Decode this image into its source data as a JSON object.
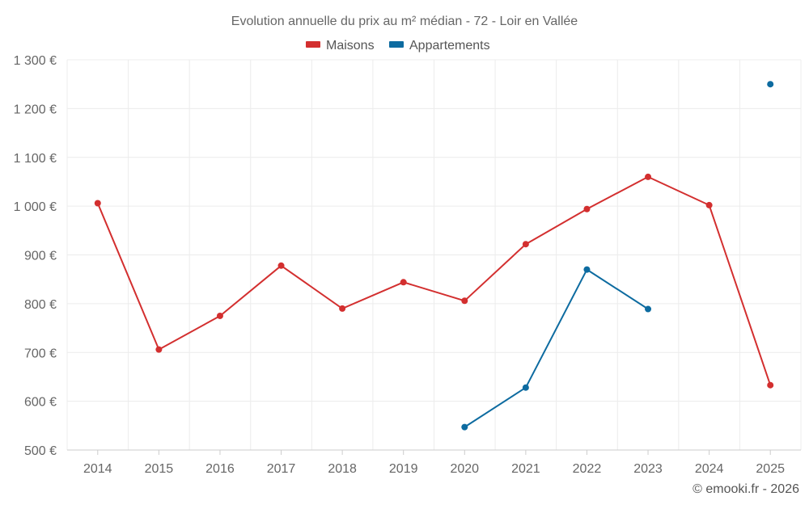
{
  "chart_data": {
    "type": "line",
    "title": "Evolution annuelle du prix au m² médian - 72 - Loir en Vallée",
    "categories": [
      "2014",
      "2015",
      "2016",
      "2017",
      "2018",
      "2019",
      "2020",
      "2021",
      "2022",
      "2023",
      "2024",
      "2025"
    ],
    "ylim": [
      500,
      1300
    ],
    "yticks": [
      500,
      600,
      700,
      800,
      900,
      1000,
      1100,
      1200,
      1300
    ],
    "ytick_labels": [
      "500 €",
      "600 €",
      "700 €",
      "800 €",
      "900 €",
      "1 000 €",
      "1 100 €",
      "1 200 €",
      "1 300 €"
    ],
    "xlabel": "",
    "ylabel": "",
    "grid": true,
    "legend_position": "top-center",
    "series": [
      {
        "name": "Maisons",
        "color": "#d32f2f",
        "values": [
          1006,
          706,
          775,
          878,
          790,
          844,
          806,
          922,
          994,
          1060,
          1002,
          633
        ]
      },
      {
        "name": "Appartements",
        "color": "#0d6ba0",
        "values": [
          null,
          null,
          null,
          null,
          null,
          null,
          547,
          628,
          870,
          789,
          null,
          1250
        ]
      }
    ]
  },
  "credit": "© emooki.fr - 2026"
}
